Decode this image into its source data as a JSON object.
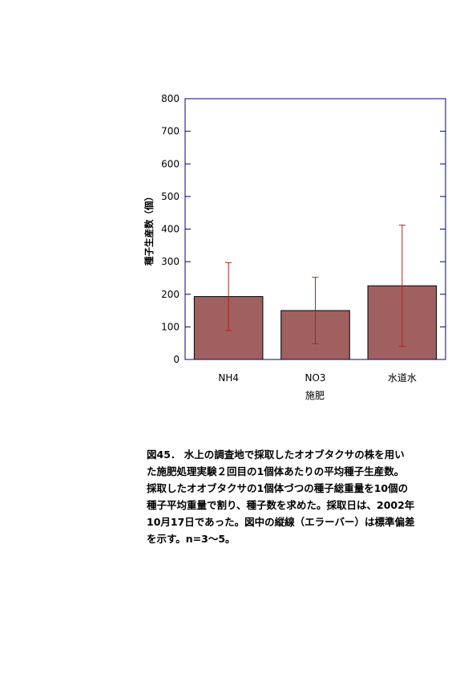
{
  "chart_data": {
    "type": "bar",
    "categories": [
      "NH4",
      "NO3",
      "水道水"
    ],
    "values": [
      193,
      150,
      226
    ],
    "error": [
      104,
      102,
      186
    ],
    "xlabel": "施肥",
    "ylabel": "種子生産数（個）",
    "ylim": [
      0,
      800
    ],
    "yticks": [
      0,
      100,
      200,
      300,
      400,
      500,
      600,
      700,
      800
    ],
    "grid": false,
    "colors": {
      "bar_fill": "#a0605f",
      "bar_stroke": "#000000",
      "error_bar": "#b22222",
      "axis": "#000080"
    }
  },
  "caption": {
    "lines": [
      "図45． 水上の調査地で採取したオオブタクサの株を用い",
      "た施肥処理実験２回目の1個体あたりの平均種子生産数。",
      "採取したオオブタクサの1個体づつの種子総重量を10個の",
      "種子平均重量で割り、種子数を求めた。採取日は、2002年",
      "10月17日であった。図中の縦線（エラーバー）は標準偏差",
      "を示す。n=3～5。"
    ]
  }
}
